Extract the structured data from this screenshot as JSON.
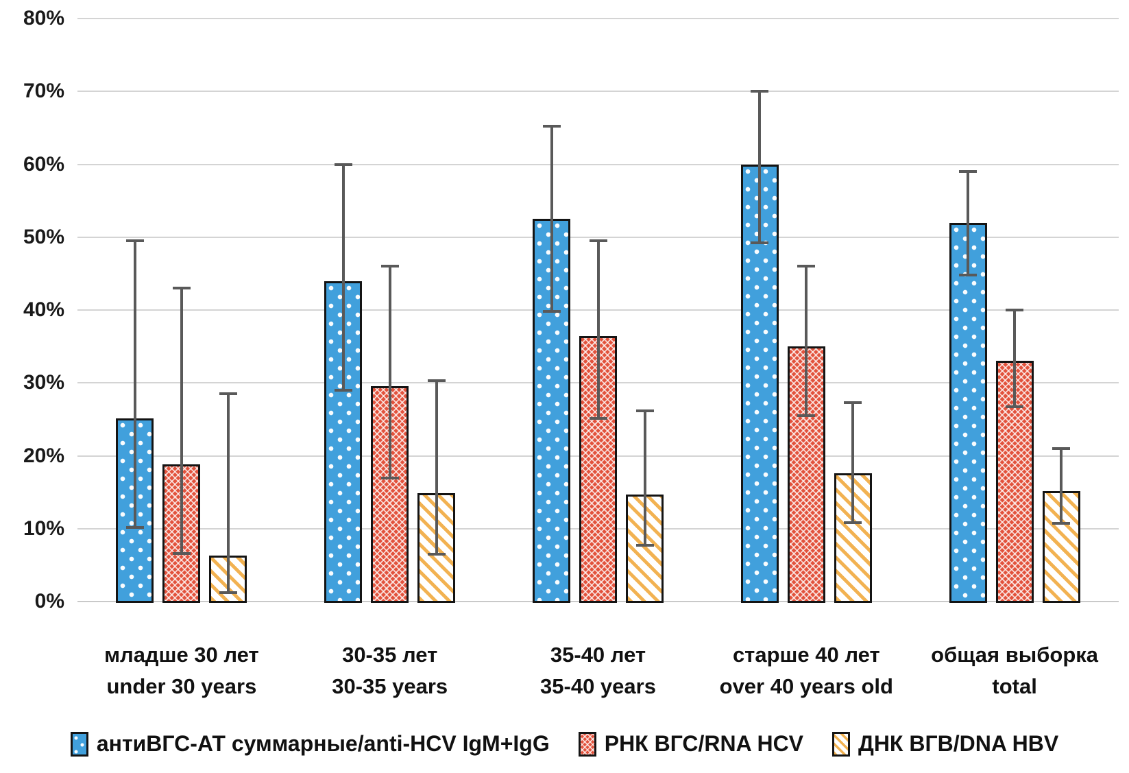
{
  "chart_data": {
    "type": "bar",
    "title": "",
    "xlabel": "",
    "ylabel": "",
    "ylim": [
      0,
      80
    ],
    "ytick_step": 10,
    "ytick_labels": [
      "0%",
      "10%",
      "20%",
      "30%",
      "40%",
      "50%",
      "60%",
      "70%",
      "80%"
    ],
    "grid": true,
    "legend_position": "bottom",
    "error_bars": true,
    "error_bar_color": "#595959",
    "gridline_color": "#d4d4d4",
    "categories": [
      {
        "line1": "младше 30 лет",
        "line2": "under 30 years"
      },
      {
        "line1": "30-35 лет",
        "line2": "30-35 years"
      },
      {
        "line1": "35-40 лет",
        "line2": "35-40 years"
      },
      {
        "line1": "старше 40 лет",
        "line2": "over 40 years old"
      },
      {
        "line1": "общая выборка",
        "line2": "total"
      }
    ],
    "series": [
      {
        "name": "антиВГС-АТ суммарные/anti-HCV IgM+IgG",
        "color": "#41A0DC",
        "pattern": "dots",
        "values": [
          25.1,
          44.0,
          52.5,
          60.0,
          52.0
        ],
        "error_low": [
          10.2,
          29.0,
          39.8,
          49.2,
          44.8
        ],
        "error_high": [
          49.5,
          60.0,
          65.2,
          70.0,
          59.0
        ]
      },
      {
        "name": "РНК ВГС/RNA HCV",
        "color": "#E2523C",
        "pattern": "cross",
        "values": [
          18.8,
          29.6,
          36.4,
          35.0,
          33.0
        ],
        "error_low": [
          6.6,
          16.9,
          25.1,
          25.5,
          26.7
        ],
        "error_high": [
          43.0,
          46.0,
          49.5,
          46.0,
          40.0
        ]
      },
      {
        "name": "ДНК ВГВ/DNA HBV",
        "color": "#F0A433",
        "pattern": "diag",
        "values": [
          6.3,
          14.9,
          14.7,
          17.6,
          15.2
        ],
        "error_low": [
          1.2,
          6.5,
          7.7,
          10.8,
          10.7
        ],
        "error_high": [
          28.5,
          30.3,
          26.2,
          27.3,
          21.0
        ]
      }
    ]
  }
}
